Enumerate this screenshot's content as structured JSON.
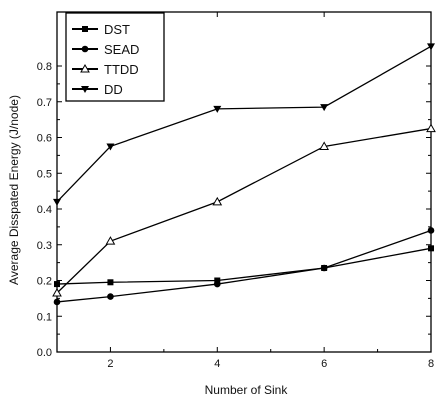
{
  "chart_data": {
    "type": "line",
    "title": "",
    "xlabel": "Number of Sink",
    "ylabel": "Average Disspated Energy (J/node)",
    "xlim": [
      1,
      8
    ],
    "ylim": [
      0.0,
      0.85
    ],
    "x_ticks": [
      "2",
      "4",
      "6",
      "8"
    ],
    "y_ticks": [
      "0.0",
      "0.1",
      "0.2",
      "0.3",
      "0.4",
      "0.5",
      "0.6",
      "0.7",
      "0.8"
    ],
    "grid": false,
    "legend_position": "top-left",
    "series": [
      {
        "name": "DST",
        "marker": "square",
        "x": [
          1,
          2,
          4,
          6,
          8
        ],
        "values": [
          0.19,
          0.195,
          0.2,
          0.235,
          0.29
        ]
      },
      {
        "name": "SEAD",
        "marker": "circle",
        "x": [
          1,
          2,
          4,
          6,
          8
        ],
        "values": [
          0.14,
          0.155,
          0.19,
          0.235,
          0.34
        ]
      },
      {
        "name": "TTDD",
        "marker": "triangle-up-open",
        "x": [
          1,
          2,
          4,
          6,
          8
        ],
        "values": [
          0.165,
          0.31,
          0.42,
          0.575,
          0.625
        ]
      },
      {
        "name": "DD",
        "marker": "triangle-down",
        "x": [
          1,
          2,
          4,
          6,
          8
        ],
        "values": [
          0.42,
          0.575,
          0.68,
          0.685,
          0.855
        ]
      }
    ]
  }
}
